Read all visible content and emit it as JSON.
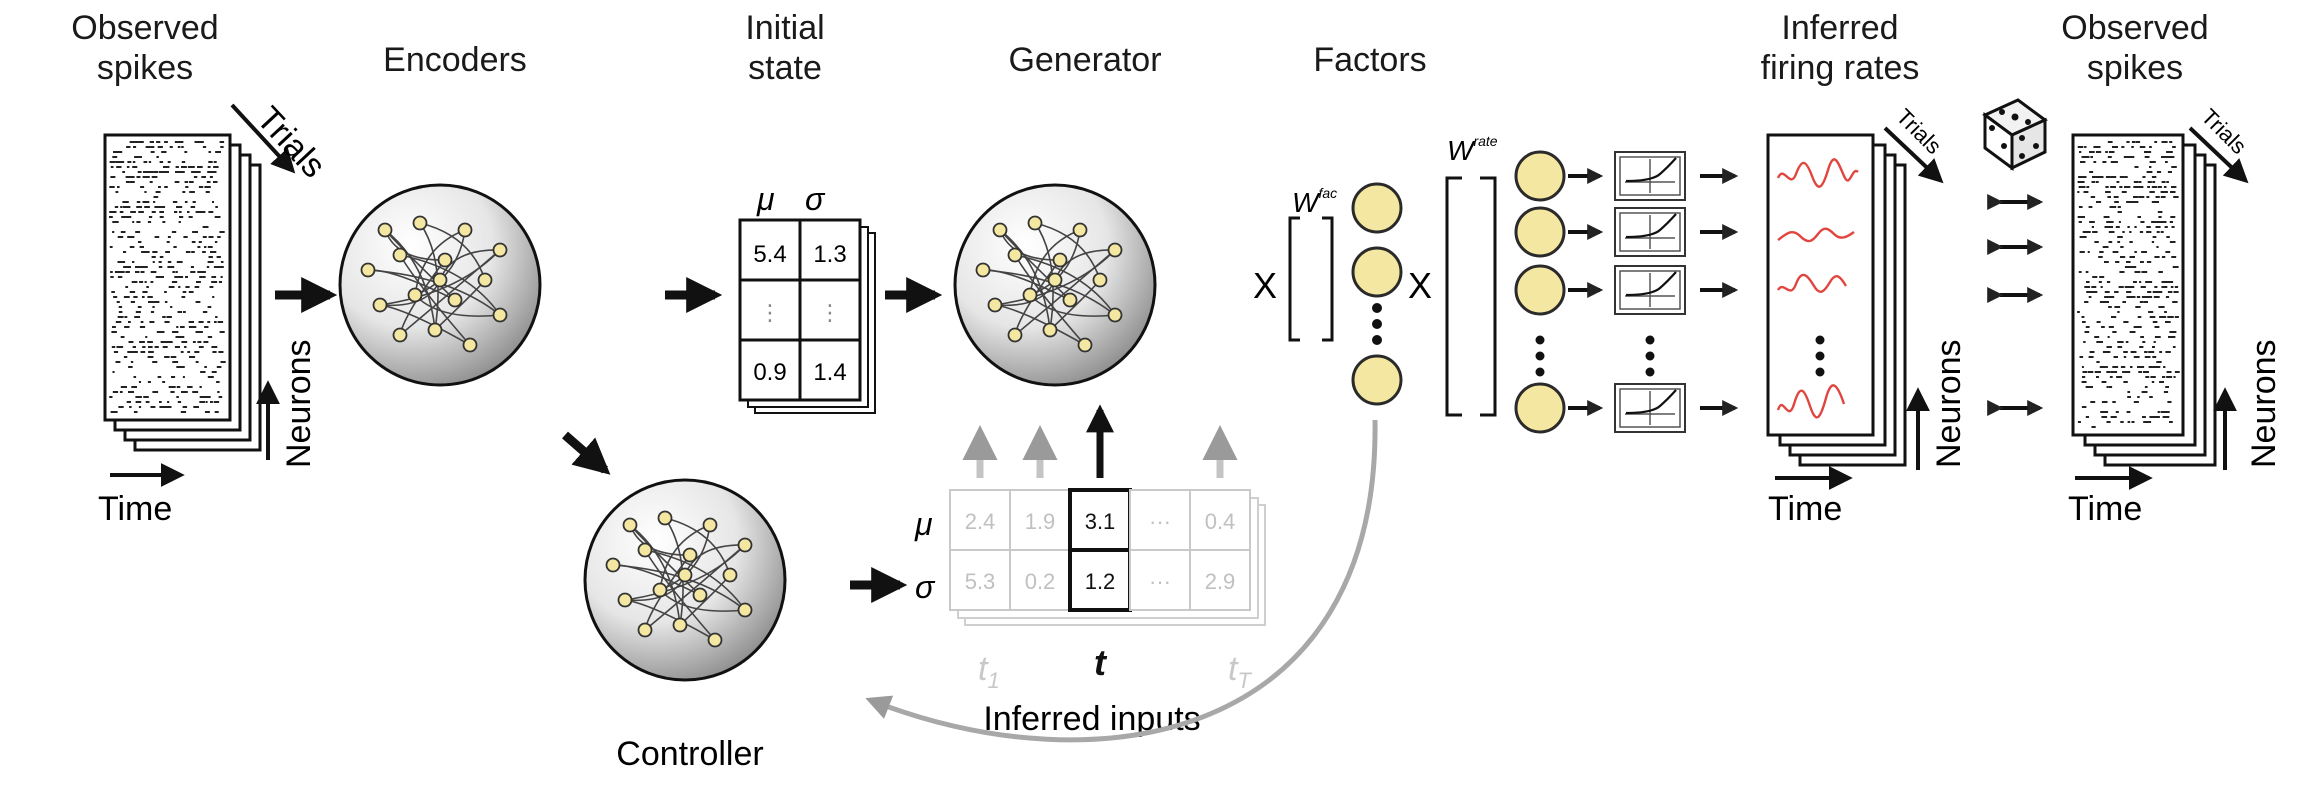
{
  "labels": {
    "observed_spikes_left": "Observed\nspikes",
    "encoders": "Encoders",
    "initial_state": "Initial\nstate",
    "generator": "Generator",
    "factors": "Factors",
    "inferred_rates": "Inferred\nfiring rates",
    "observed_spikes_right": "Observed\nspikes",
    "controller": "Controller",
    "inferred_inputs": "Inferred inputs",
    "trials": "Trials",
    "neurons": "Neurons",
    "time": "Time",
    "x_symbol": "X"
  },
  "initial_state": {
    "mu": "μ",
    "sigma": "σ",
    "rows": [
      [
        "5.4",
        "1.3"
      ],
      [
        "⋮",
        "⋮"
      ],
      [
        "0.9",
        "1.4"
      ]
    ]
  },
  "inferred_inputs": {
    "mu": "μ",
    "sigma": "σ",
    "mu_values": [
      "2.4",
      "1.9",
      "3.1",
      "···",
      "0.4"
    ],
    "sigma_values": [
      "5.3",
      "0.2",
      "1.2",
      "···",
      "2.9"
    ],
    "time_labels": [
      "t1",
      "t",
      "tT"
    ]
  },
  "weights": {
    "w_fac": "W",
    "w_fac_sup": "fac",
    "w_rate": "W",
    "w_rate_sup": "rate"
  },
  "colors": {
    "node_fill": "#f4e7a1",
    "node_stroke": "#2a2a2a",
    "rate_curve": "#e0463f",
    "faded": "#b8b8b8",
    "sphere_light": "#f7f7f7",
    "sphere_dark": "#9a9a9a"
  }
}
